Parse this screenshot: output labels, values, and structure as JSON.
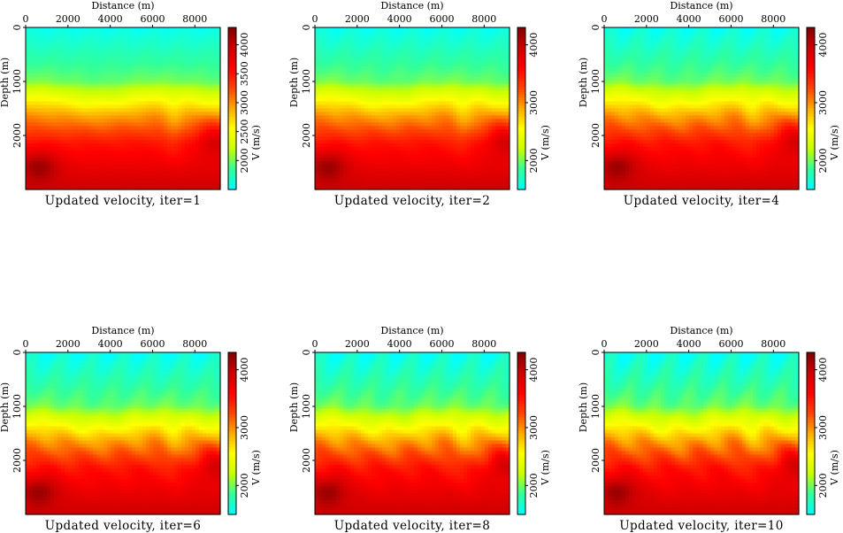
{
  "shared": {
    "xlabel": "Distance (m)",
    "ylabel": "Depth (m)",
    "colorbar_label": "V (m/s)",
    "x_ticks": [
      "0",
      "2000",
      "4000",
      "6000",
      "8000"
    ],
    "y_ticks": [
      "0",
      "1000",
      "2000"
    ],
    "x_range": [
      0,
      9200
    ],
    "y_range": [
      0,
      3000
    ],
    "colorscale": [
      "#00ffff",
      "#33ff99",
      "#c8ff00",
      "#ffff00",
      "#ffaa00",
      "#ff4400",
      "#ff0000",
      "#cc0000",
      "#800000"
    ]
  },
  "chart_data": [
    {
      "type": "heatmap",
      "title": "Updated velocity, iter=1",
      "xlabel": "Distance (m)",
      "ylabel": "Depth (m)",
      "colorbar_label": "V (m/s)",
      "colorbar_ticks": [
        "2000",
        "2500",
        "3000",
        "3500",
        "4000"
      ],
      "colorbar_range": [
        1500,
        4300
      ],
      "detail": 0.2
    },
    {
      "type": "heatmap",
      "title": "Updated velocity, iter=2",
      "xlabel": "Distance (m)",
      "ylabel": "Depth (m)",
      "colorbar_label": "V (m/s)",
      "colorbar_ticks": [
        "2000",
        "3000",
        "4000"
      ],
      "colorbar_range": [
        1500,
        4300
      ],
      "detail": 0.35
    },
    {
      "type": "heatmap",
      "title": "Updated velocity, iter=4",
      "xlabel": "Distance (m)",
      "ylabel": "Depth (m)",
      "colorbar_label": "V (m/s)",
      "colorbar_ticks": [
        "2000",
        "3000",
        "4000"
      ],
      "colorbar_range": [
        1500,
        4300
      ],
      "detail": 0.55
    },
    {
      "type": "heatmap",
      "title": "Updated velocity, iter=6",
      "xlabel": "Distance (m)",
      "ylabel": "Depth (m)",
      "colorbar_label": "V (m/s)",
      "colorbar_ticks": [
        "2000",
        "3000",
        "4000"
      ],
      "colorbar_range": [
        1500,
        4300
      ],
      "detail": 0.7
    },
    {
      "type": "heatmap",
      "title": "Updated velocity, iter=8",
      "xlabel": "Distance (m)",
      "ylabel": "Depth (m)",
      "colorbar_label": "V (m/s)",
      "colorbar_ticks": [
        "2000",
        "3000",
        "4000"
      ],
      "colorbar_range": [
        1500,
        4300
      ],
      "detail": 0.85
    },
    {
      "type": "heatmap",
      "title": "Updated velocity, iter=10",
      "xlabel": "Distance (m)",
      "ylabel": "Depth (m)",
      "colorbar_label": "V (m/s)",
      "colorbar_ticks": [
        "2000",
        "3000",
        "4000"
      ],
      "colorbar_range": [
        1500,
        4300
      ],
      "detail": 1.0
    }
  ]
}
